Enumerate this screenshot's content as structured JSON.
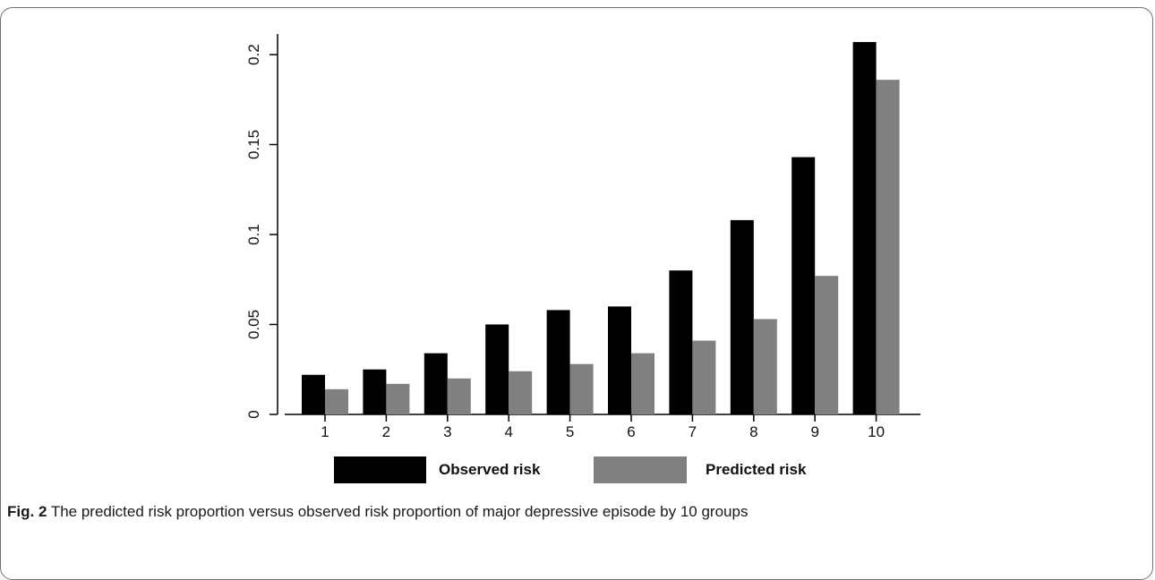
{
  "caption": {
    "label": "Fig. 2",
    "text": "The predicted risk proportion versus observed risk proportion of major depressive episode by 10 groups"
  },
  "legend": [
    {
      "label": "Observed risk",
      "color": "#000000"
    },
    {
      "label": "Predicted risk",
      "color": "#808080"
    }
  ],
  "chart_data": {
    "type": "bar",
    "categories": [
      "1",
      "2",
      "3",
      "4",
      "5",
      "6",
      "7",
      "8",
      "9",
      "10"
    ],
    "series": [
      {
        "name": "Observed risk",
        "color": "#000000",
        "values": [
          0.022,
          0.025,
          0.034,
          0.05,
          0.058,
          0.06,
          0.08,
          0.108,
          0.143,
          0.207
        ]
      },
      {
        "name": "Predicted risk",
        "color": "#808080",
        "values": [
          0.014,
          0.017,
          0.02,
          0.024,
          0.028,
          0.034,
          0.041,
          0.053,
          0.077,
          0.186
        ]
      }
    ],
    "yticks": [
      "0",
      "0.05",
      "0.1",
      "0.15",
      "0.2"
    ],
    "ylim": [
      0,
      0.2
    ],
    "title": "",
    "xlabel": "",
    "ylabel": "",
    "grid": false,
    "legend_position": "bottom"
  }
}
